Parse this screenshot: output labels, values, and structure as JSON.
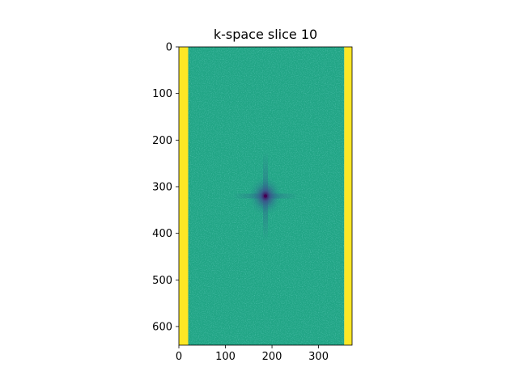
{
  "chart_data": {
    "type": "heatmap",
    "title": "k-space slice 10",
    "xlabel": "",
    "ylabel": "",
    "image_shape": {
      "rows": 640,
      "cols": 372
    },
    "xlim": [
      0,
      372
    ],
    "ylim": [
      640,
      0
    ],
    "y_axis_inverted": true,
    "x_ticks": [
      0,
      100,
      200,
      300
    ],
    "y_ticks": [
      0,
      100,
      200,
      300,
      400,
      500,
      600
    ],
    "x_tick_labels": [
      "0",
      "100",
      "200",
      "300"
    ],
    "y_tick_labels": [
      "0",
      "100",
      "200",
      "300",
      "400",
      "500",
      "600"
    ],
    "colormap": "viridis",
    "grid": false,
    "legend": "none",
    "regions": [
      {
        "name": "left-padding-band",
        "col_start": 0,
        "col_end": 20,
        "level": 1.0,
        "color": "#fde725"
      },
      {
        "name": "right-padding-band",
        "col_start": 355,
        "col_end": 372,
        "level": 1.0,
        "color": "#fde725"
      },
      {
        "name": "sampled-k-space",
        "col_start": 20,
        "col_end": 355,
        "level": 0.55,
        "color": "#21a585"
      }
    ],
    "center_peak": {
      "x": 186,
      "y": 320,
      "level": 0.0,
      "color": "#440154"
    }
  }
}
